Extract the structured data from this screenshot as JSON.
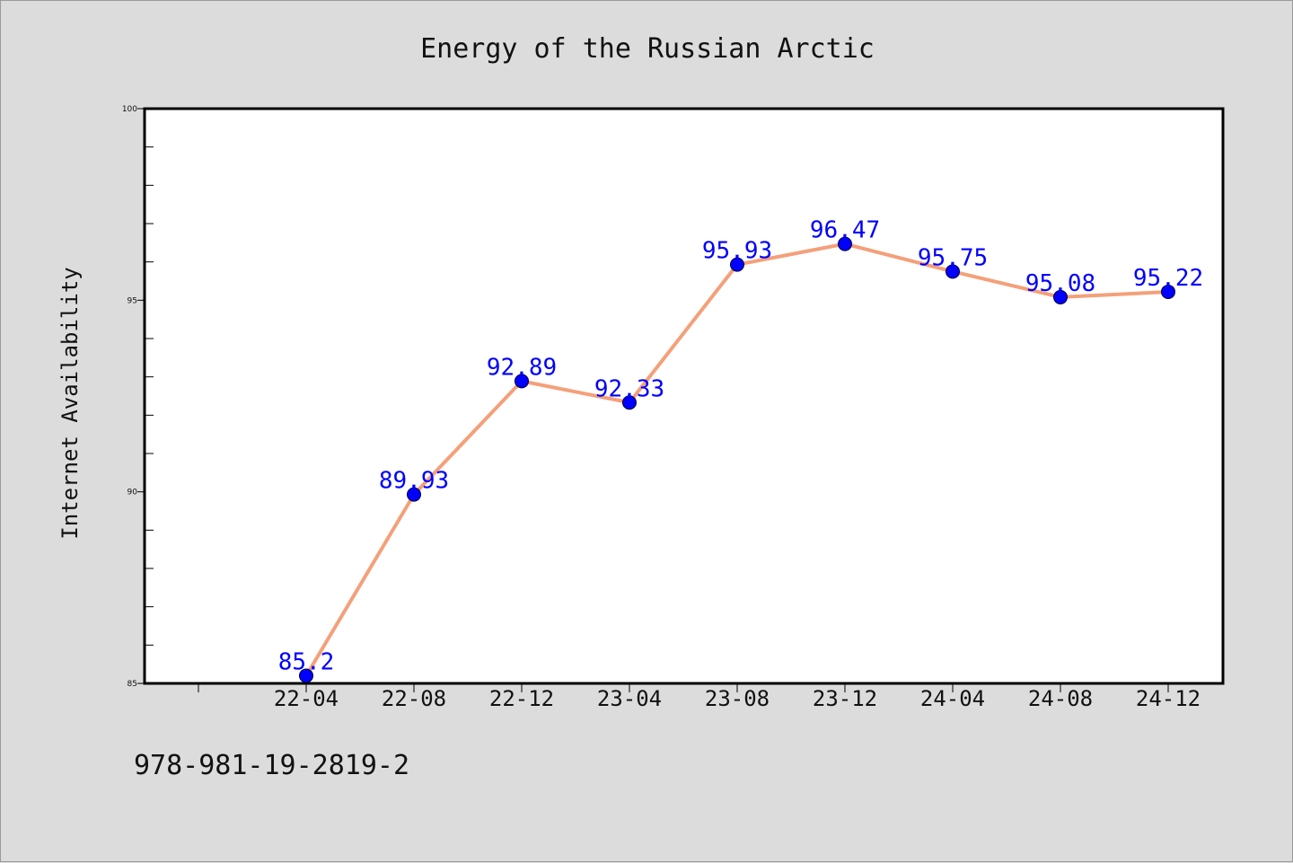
{
  "chart_data": {
    "type": "line",
    "title": "Energy of the Russian Arctic",
    "xlabel": "",
    "ylabel": "Internet Availability",
    "categories": [
      "22-04",
      "22-08",
      "22-12",
      "23-04",
      "23-08",
      "23-12",
      "24-04",
      "24-08",
      "24-12"
    ],
    "series": [
      {
        "values": [
          85.2,
          89.93,
          92.89,
          92.33,
          95.93,
          96.47,
          95.75,
          95.08,
          95.22
        ],
        "color": "#f4a07a",
        "marker_color": "#0000ff"
      }
    ],
    "ylim": [
      85,
      100
    ],
    "y_ticks": [
      85,
      90,
      95,
      100
    ],
    "grid": false,
    "legend": "none",
    "data_label_color": "#0000ff"
  },
  "footer": {
    "isbn": "978-981-19-2819-2"
  }
}
